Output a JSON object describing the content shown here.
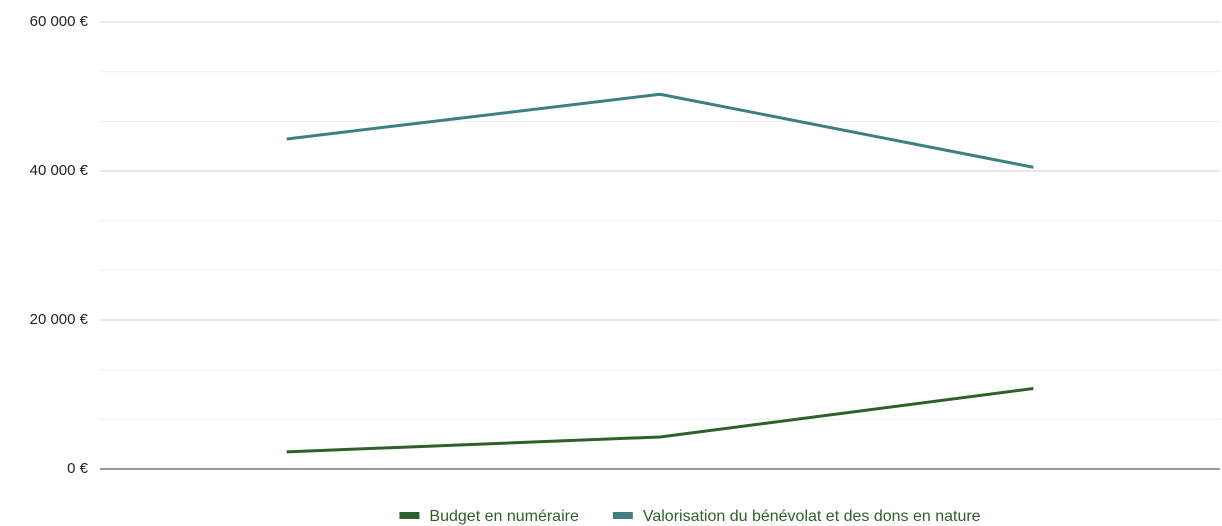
{
  "chart_data": {
    "type": "line",
    "categories": [
      null,
      null,
      null
    ],
    "series": [
      {
        "name": "Budget en numéraire",
        "color": "#2f5f2a",
        "values": [
          2300,
          4300,
          10800
        ]
      },
      {
        "name": "Valorisation du bénévolat et des dons en nature",
        "color": "#3f7f7f",
        "values": [
          44300,
          50300,
          40500
        ]
      }
    ],
    "ylim": [
      0,
      60000
    ],
    "yticks": [
      {
        "value": 0,
        "label": "0 €"
      },
      {
        "value": 20000,
        "label": "20 000 €"
      },
      {
        "value": 40000,
        "label": "40 000 €"
      },
      {
        "value": 60000,
        "label": "60 000 €"
      }
    ],
    "minor_yticks": [
      6667,
      13333,
      26667,
      33333,
      46667,
      53333
    ],
    "grid": true,
    "legend": "bottom"
  }
}
